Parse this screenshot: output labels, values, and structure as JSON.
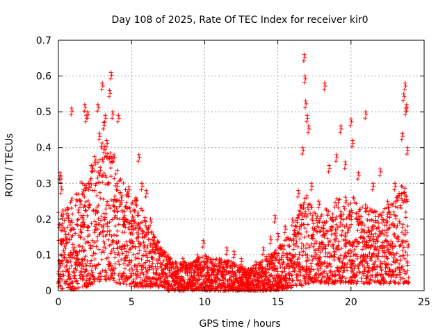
{
  "chart_data": {
    "type": "scatter",
    "title": "Day 108 of 2025, Rate Of TEC Index for receiver kir0",
    "xlabel": "GPS time / hours",
    "ylabel": "ROTI / TECUs",
    "xlim": [
      0,
      25
    ],
    "ylim": [
      0,
      0.7
    ],
    "x_ticks": [
      "0",
      "5",
      "10",
      "15",
      "20",
      "25"
    ],
    "y_ticks": [
      "0",
      "0.1",
      "0.2",
      "0.3",
      "0.4",
      "0.5",
      "0.6",
      "0.7"
    ],
    "x_tick_values": [
      0,
      5,
      10,
      15,
      20,
      25
    ],
    "y_tick_values": [
      0,
      0.1,
      0.2,
      0.3,
      0.4,
      0.5,
      0.6,
      0.7
    ],
    "grid": true,
    "marker": "+",
    "color": "#ff0000",
    "series": [
      {
        "values": [
          {
            "x": 0.0,
            "y": 0.02
          },
          {
            "x": 0.1,
            "y": 0.33
          },
          {
            "x": 0.15,
            "y": 0.32
          },
          {
            "x": 0.2,
            "y": 0.29
          },
          {
            "x": 0.3,
            "y": 0.22
          },
          {
            "x": 0.5,
            "y": 0.15
          },
          {
            "x": 0.7,
            "y": 0.1
          },
          {
            "x": 0.9,
            "y": 0.51
          },
          {
            "x": 1.0,
            "y": 0.12
          },
          {
            "x": 1.2,
            "y": 0.08
          },
          {
            "x": 1.5,
            "y": 0.25
          },
          {
            "x": 1.7,
            "y": 0.2
          },
          {
            "x": 1.8,
            "y": 0.52
          },
          {
            "x": 1.9,
            "y": 0.49
          },
          {
            "x": 2.0,
            "y": 0.5
          },
          {
            "x": 2.1,
            "y": 0.3
          },
          {
            "x": 2.3,
            "y": 0.35
          },
          {
            "x": 2.5,
            "y": 0.18
          },
          {
            "x": 2.7,
            "y": 0.52
          },
          {
            "x": 2.8,
            "y": 0.44
          },
          {
            "x": 3.0,
            "y": 0.58
          },
          {
            "x": 3.1,
            "y": 0.47
          },
          {
            "x": 3.2,
            "y": 0.49
          },
          {
            "x": 3.3,
            "y": 0.42
          },
          {
            "x": 3.5,
            "y": 0.56
          },
          {
            "x": 3.6,
            "y": 0.61
          },
          {
            "x": 3.7,
            "y": 0.5
          },
          {
            "x": 3.8,
            "y": 0.38
          },
          {
            "x": 4.0,
            "y": 0.3
          },
          {
            "x": 4.1,
            "y": 0.49
          },
          {
            "x": 4.3,
            "y": 0.26
          },
          {
            "x": 4.5,
            "y": 0.2
          },
          {
            "x": 4.8,
            "y": 0.29
          },
          {
            "x": 5.0,
            "y": 0.18
          },
          {
            "x": 5.3,
            "y": 0.26
          },
          {
            "x": 5.5,
            "y": 0.38
          },
          {
            "x": 5.7,
            "y": 0.3
          },
          {
            "x": 6.0,
            "y": 0.28
          },
          {
            "x": 6.3,
            "y": 0.2
          },
          {
            "x": 6.5,
            "y": 0.14
          },
          {
            "x": 7.0,
            "y": 0.12
          },
          {
            "x": 7.5,
            "y": 0.1
          },
          {
            "x": 8.0,
            "y": 0.08
          },
          {
            "x": 8.5,
            "y": 0.09
          },
          {
            "x": 9.0,
            "y": 0.07
          },
          {
            "x": 9.5,
            "y": 0.1
          },
          {
            "x": 9.9,
            "y": 0.14
          },
          {
            "x": 10.5,
            "y": 0.08
          },
          {
            "x": 11.0,
            "y": 0.07
          },
          {
            "x": 11.5,
            "y": 0.12
          },
          {
            "x": 12.0,
            "y": 0.11
          },
          {
            "x": 12.5,
            "y": 0.09
          },
          {
            "x": 13.0,
            "y": 0.06
          },
          {
            "x": 13.5,
            "y": 0.08
          },
          {
            "x": 14.0,
            "y": 0.12
          },
          {
            "x": 14.5,
            "y": 0.15
          },
          {
            "x": 14.8,
            "y": 0.21
          },
          {
            "x": 15.0,
            "y": 0.16
          },
          {
            "x": 15.5,
            "y": 0.18
          },
          {
            "x": 16.0,
            "y": 0.2
          },
          {
            "x": 16.4,
            "y": 0.28
          },
          {
            "x": 16.7,
            "y": 0.4
          },
          {
            "x": 16.8,
            "y": 0.66
          },
          {
            "x": 16.85,
            "y": 0.6
          },
          {
            "x": 16.9,
            "y": 0.53
          },
          {
            "x": 17.0,
            "y": 0.49
          },
          {
            "x": 17.1,
            "y": 0.46
          },
          {
            "x": 17.3,
            "y": 0.3
          },
          {
            "x": 17.8,
            "y": 0.25
          },
          {
            "x": 18.2,
            "y": 0.58
          },
          {
            "x": 18.5,
            "y": 0.35
          },
          {
            "x": 19.0,
            "y": 0.38
          },
          {
            "x": 19.3,
            "y": 0.46
          },
          {
            "x": 19.6,
            "y": 0.36
          },
          {
            "x": 20.0,
            "y": 0.48
          },
          {
            "x": 20.1,
            "y": 0.42
          },
          {
            "x": 20.5,
            "y": 0.33
          },
          {
            "x": 21.0,
            "y": 0.5
          },
          {
            "x": 21.5,
            "y": 0.3
          },
          {
            "x": 22.0,
            "y": 0.34
          },
          {
            "x": 22.5,
            "y": 0.25
          },
          {
            "x": 23.0,
            "y": 0.3
          },
          {
            "x": 23.5,
            "y": 0.44
          },
          {
            "x": 23.6,
            "y": 0.55
          },
          {
            "x": 23.7,
            "y": 0.58
          },
          {
            "x": 23.75,
            "y": 0.51
          },
          {
            "x": 23.8,
            "y": 0.52
          },
          {
            "x": 23.85,
            "y": 0.4
          }
        ]
      }
    ],
    "envelope": [
      {
        "x": 0,
        "lo": 0.0,
        "hi": 0.22
      },
      {
        "x": 0.5,
        "lo": 0.01,
        "hi": 0.23
      },
      {
        "x": 1,
        "lo": 0.0,
        "hi": 0.27
      },
      {
        "x": 1.5,
        "lo": 0.01,
        "hi": 0.3
      },
      {
        "x": 2,
        "lo": 0.01,
        "hi": 0.34
      },
      {
        "x": 2.5,
        "lo": 0.02,
        "hi": 0.38
      },
      {
        "x": 3,
        "lo": 0.03,
        "hi": 0.43
      },
      {
        "x": 3.5,
        "lo": 0.03,
        "hi": 0.4
      },
      {
        "x": 4,
        "lo": 0.02,
        "hi": 0.34
      },
      {
        "x": 4.5,
        "lo": 0.02,
        "hi": 0.3
      },
      {
        "x": 5,
        "lo": 0.01,
        "hi": 0.27
      },
      {
        "x": 5.5,
        "lo": 0.01,
        "hi": 0.25
      },
      {
        "x": 6,
        "lo": 0.01,
        "hi": 0.2
      },
      {
        "x": 6.5,
        "lo": 0.01,
        "hi": 0.16
      },
      {
        "x": 7,
        "lo": 0.01,
        "hi": 0.13
      },
      {
        "x": 7.5,
        "lo": 0.0,
        "hi": 0.1
      },
      {
        "x": 8,
        "lo": 0.0,
        "hi": 0.08
      },
      {
        "x": 9,
        "lo": 0.0,
        "hi": 0.08
      },
      {
        "x": 10,
        "lo": 0.0,
        "hi": 0.1
      },
      {
        "x": 11,
        "lo": 0.0,
        "hi": 0.09
      },
      {
        "x": 12,
        "lo": 0.0,
        "hi": 0.08
      },
      {
        "x": 13,
        "lo": 0.0,
        "hi": 0.06
      },
      {
        "x": 14,
        "lo": 0.0,
        "hi": 0.09
      },
      {
        "x": 15,
        "lo": 0.0,
        "hi": 0.12
      },
      {
        "x": 16,
        "lo": 0.01,
        "hi": 0.17
      },
      {
        "x": 16.5,
        "lo": 0.01,
        "hi": 0.24
      },
      {
        "x": 17,
        "lo": 0.02,
        "hi": 0.28
      },
      {
        "x": 17.5,
        "lo": 0.02,
        "hi": 0.22
      },
      {
        "x": 18,
        "lo": 0.02,
        "hi": 0.22
      },
      {
        "x": 19,
        "lo": 0.02,
        "hi": 0.26
      },
      {
        "x": 20,
        "lo": 0.02,
        "hi": 0.27
      },
      {
        "x": 21,
        "lo": 0.02,
        "hi": 0.24
      },
      {
        "x": 22,
        "lo": 0.02,
        "hi": 0.22
      },
      {
        "x": 23,
        "lo": 0.02,
        "hi": 0.25
      },
      {
        "x": 23.5,
        "lo": 0.02,
        "hi": 0.3
      },
      {
        "x": 24,
        "lo": 0.02,
        "hi": 0.28
      }
    ]
  }
}
